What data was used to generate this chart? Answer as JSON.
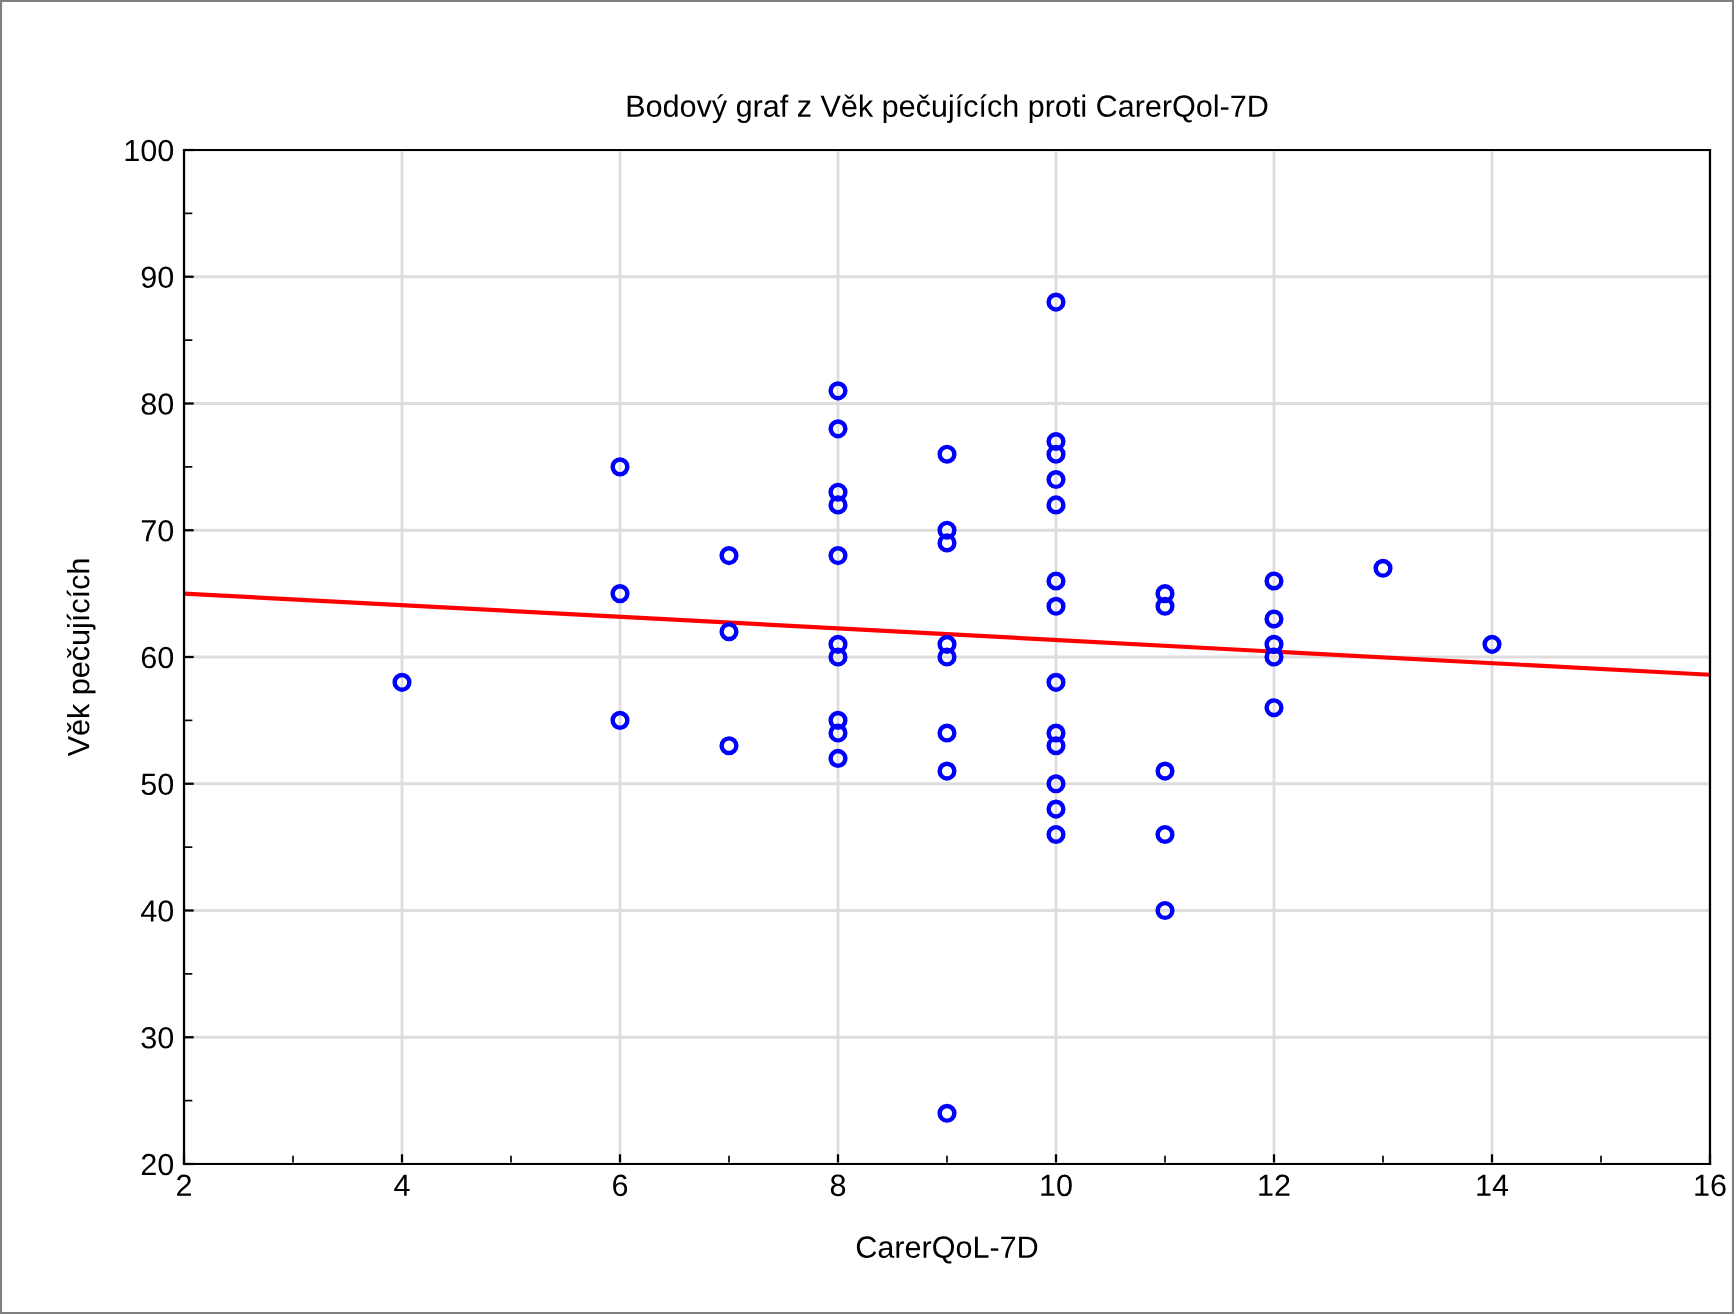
{
  "chart_data": {
    "type": "scatter",
    "title": "Bodový graf z Věk pečujících proti CarerQol-7D",
    "xlabel": "CarerQoL-7D",
    "ylabel": "Věk pečujících",
    "series": [
      {
        "color": "#0000ff",
        "marker": "circle",
        "x": [
          4,
          6,
          6,
          6,
          7,
          7,
          7,
          8,
          8,
          8,
          8,
          8,
          8,
          8,
          8,
          8,
          8,
          9,
          9,
          9,
          9,
          9,
          9,
          9,
          9,
          10,
          10,
          10,
          10,
          10,
          10,
          10,
          10,
          10,
          10,
          10,
          10,
          10,
          11,
          11,
          11,
          11,
          11,
          12,
          12,
          12,
          12,
          12,
          13,
          14
        ],
        "values": [
          58,
          75,
          65,
          55,
          68,
          62,
          53,
          81,
          78,
          73,
          72,
          68,
          61,
          60,
          55,
          54,
          52,
          76,
          70,
          69,
          61,
          60,
          54,
          51,
          24,
          88,
          77,
          76,
          74,
          72,
          66,
          64,
          58,
          54,
          53,
          50,
          48,
          46,
          65,
          64,
          51,
          46,
          40,
          66,
          63,
          61,
          60,
          56,
          67,
          61
        ]
      },
      {
        "type": "line",
        "color": "#ff0000",
        "marker": "none",
        "line_style": "solid",
        "x": [
          2,
          16
        ],
        "values": [
          65,
          58.6
        ]
      }
    ],
    "xlim": [
      2,
      16
    ],
    "ylim": [
      20,
      100
    ],
    "xticks": [
      2,
      4,
      6,
      8,
      10,
      12,
      14,
      16
    ],
    "yticks": [
      20,
      30,
      40,
      50,
      60,
      70,
      80,
      90,
      100
    ],
    "grid": true,
    "legend": false
  }
}
